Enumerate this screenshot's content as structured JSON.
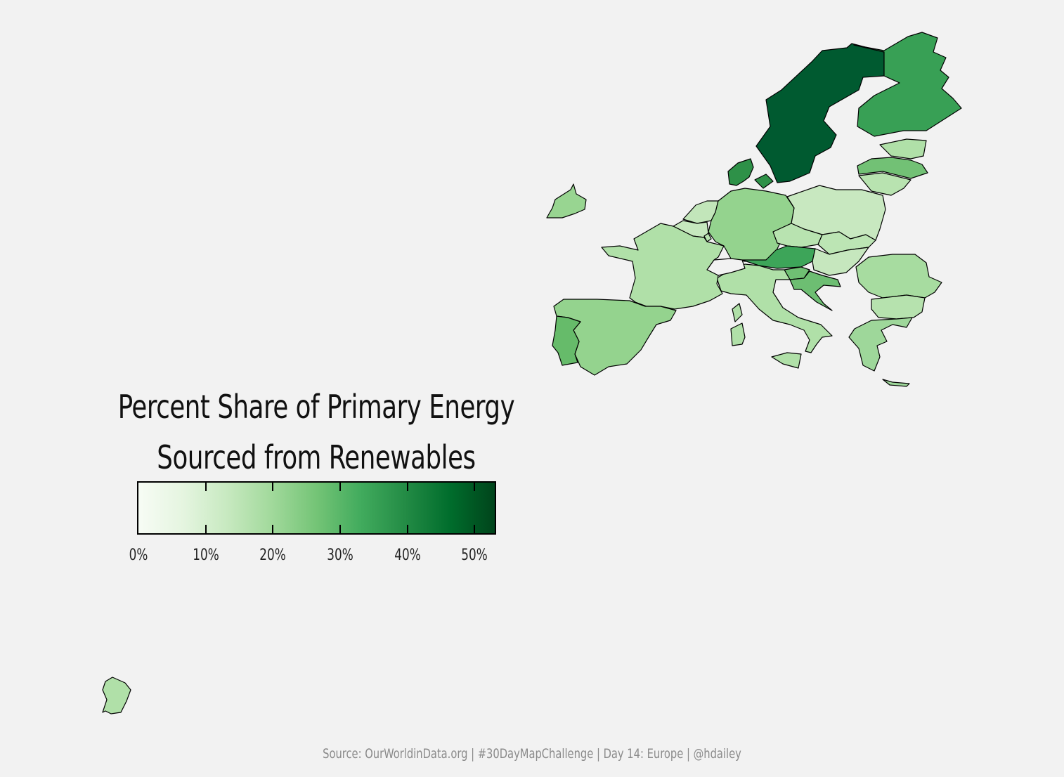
{
  "legend": {
    "title_line1": "Percent Share of Primary Energy",
    "title_line2": "Sourced from Renewables",
    "ticks": [
      "0%",
      "10%",
      "20%",
      "30%",
      "40%",
      "50%"
    ],
    "gradient_colors": [
      "#f7fcf5",
      "#e5f5e0",
      "#c7e9c0",
      "#a1d99b",
      "#74c476",
      "#41ab5d",
      "#238b45",
      "#006d2c",
      "#00441b"
    ],
    "range": [
      0,
      53
    ]
  },
  "caption": "Source: OurWorldinData.org | #30DayMapChallenge | Day 14: Europe | @hdailey",
  "map": {
    "regions": [
      {
        "name": "Sweden",
        "color": "#005a30"
      },
      {
        "name": "Finland",
        "color": "#38a055"
      },
      {
        "name": "Norway-portion",
        "color": "#005a30"
      },
      {
        "name": "Estonia",
        "color": "#b0e0a8"
      },
      {
        "name": "Latvia",
        "color": "#72c175"
      },
      {
        "name": "Lithuania",
        "color": "#b8e3b0"
      },
      {
        "name": "Denmark",
        "color": "#2e9148"
      },
      {
        "name": "Ireland",
        "color": "#98d591"
      },
      {
        "name": "Netherlands",
        "color": "#c2e6ba"
      },
      {
        "name": "Belgium",
        "color": "#c6e8be"
      },
      {
        "name": "Luxembourg",
        "color": "#b8e3b0"
      },
      {
        "name": "Germany",
        "color": "#94d38e"
      },
      {
        "name": "Poland",
        "color": "#c8e8c0"
      },
      {
        "name": "Czechia",
        "color": "#b8e3b0"
      },
      {
        "name": "Slovakia",
        "color": "#bce5b4"
      },
      {
        "name": "Austria",
        "color": "#3da559"
      },
      {
        "name": "Hungary",
        "color": "#c6e7be"
      },
      {
        "name": "Slovenia",
        "color": "#6fbf73"
      },
      {
        "name": "Croatia",
        "color": "#6dbe72"
      },
      {
        "name": "Romania",
        "color": "#a7dca0"
      },
      {
        "name": "Bulgaria",
        "color": "#b6e2ae"
      },
      {
        "name": "Greece",
        "color": "#9ed79a"
      },
      {
        "name": "Italy",
        "color": "#b0e0a8"
      },
      {
        "name": "France",
        "color": "#b0e0a8"
      },
      {
        "name": "Spain",
        "color": "#94d38e"
      },
      {
        "name": "Portugal",
        "color": "#66bb6a"
      },
      {
        "name": "Corsica",
        "color": "#b0e0a8"
      },
      {
        "name": "Sardinia",
        "color": "#b0e0a8"
      },
      {
        "name": "Sicily",
        "color": "#b0e0a8"
      },
      {
        "name": "Crete",
        "color": "#9ed79a"
      },
      {
        "name": "Switzerland",
        "color": "#f2f2f2"
      },
      {
        "name": "French Guiana",
        "color": "#b0e0a8"
      }
    ]
  }
}
